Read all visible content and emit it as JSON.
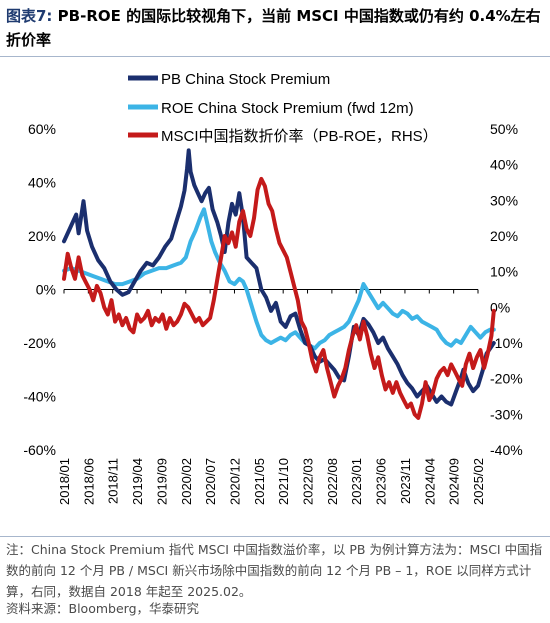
{
  "title": {
    "label": "图表7:",
    "text": "PB-ROE 的国际比较视角下，当前 MSCI 中国指数或仍有约 0.4%左右折价率"
  },
  "note": "注：China Stock Premium 指代 MSCI 中国指数溢价率，以 PB 为例计算方法为：MSCI 中国指数的前向 12 个月 PB / MSCI 新兴市场除中国指数的前向 12 个月 PB – 1，ROE 以同样方式计算，右同，数据自 2018 年起至 2025.02。",
  "source": "资料来源：Bloomberg，华泰研究",
  "chart_data": {
    "type": "line",
    "x_tick_labels": [
      "2018/01",
      "2018/06",
      "2018/11",
      "2019/04",
      "2019/09",
      "2020/02",
      "2020/07",
      "2020/12",
      "2021/05",
      "2021/10",
      "2022/03",
      "2022/08",
      "2023/01",
      "2023/06",
      "2023/11",
      "2024/04",
      "2024/09",
      "2025/02"
    ],
    "x_range": [
      "2018-01",
      "2025-02"
    ],
    "y_left": {
      "range": [
        -60,
        60
      ],
      "ticks": [
        "-60%",
        "-40%",
        "-20%",
        "0%",
        "20%",
        "40%",
        "60%"
      ]
    },
    "y_right": {
      "range": [
        -40,
        50
      ],
      "ticks": [
        "-40%",
        "-30%",
        "-20%",
        "-10%",
        "0%",
        "10%",
        "20%",
        "30%",
        "40%",
        "50%"
      ]
    },
    "legend": [
      "PB China Stock Premium",
      "ROE China Stock Premium (fwd 12m)",
      "MSCI中国指数折价率（PB-ROE，RHS）"
    ],
    "legend_position": "top-left",
    "grid": false,
    "colors": {
      "pb": "#1b2f6e",
      "roe": "#3cb4e6",
      "discount": "#c41a1a"
    },
    "series": [
      {
        "name": "PB China Stock Premium",
        "axis": "left",
        "points": [
          [
            0.0,
            18
          ],
          [
            0.25,
            23
          ],
          [
            0.5,
            28
          ],
          [
            0.6,
            21
          ],
          [
            0.8,
            33
          ],
          [
            0.95,
            22
          ],
          [
            1.15,
            16
          ],
          [
            1.4,
            11
          ],
          [
            1.65,
            8
          ],
          [
            1.9,
            3
          ],
          [
            2.15,
            0
          ],
          [
            2.4,
            -2
          ],
          [
            2.65,
            -1
          ],
          [
            2.9,
            3
          ],
          [
            3.15,
            7
          ],
          [
            3.4,
            10
          ],
          [
            3.65,
            9
          ],
          [
            3.9,
            12
          ],
          [
            4.15,
            16
          ],
          [
            4.4,
            19
          ],
          [
            4.6,
            25
          ],
          [
            4.8,
            31
          ],
          [
            4.95,
            37
          ],
          [
            5.05,
            45
          ],
          [
            5.12,
            52
          ],
          [
            5.2,
            44
          ],
          [
            5.35,
            39
          ],
          [
            5.5,
            36
          ],
          [
            5.65,
            33
          ],
          [
            5.8,
            36
          ],
          [
            5.95,
            38
          ],
          [
            6.1,
            30
          ],
          [
            6.3,
            25
          ],
          [
            6.45,
            20
          ],
          [
            6.6,
            14
          ],
          [
            6.75,
            25
          ],
          [
            6.9,
            32
          ],
          [
            7.05,
            28
          ],
          [
            7.2,
            36
          ],
          [
            7.35,
            27
          ],
          [
            7.5,
            12
          ],
          [
            7.7,
            10
          ],
          [
            7.9,
            8
          ],
          [
            8.1,
            0
          ],
          [
            8.3,
            -3
          ],
          [
            8.5,
            -8
          ],
          [
            8.7,
            -5
          ],
          [
            8.9,
            -12
          ],
          [
            9.1,
            -14
          ],
          [
            9.3,
            -10
          ],
          [
            9.5,
            -9
          ],
          [
            9.7,
            -15
          ],
          [
            9.9,
            -20
          ],
          [
            10.1,
            -21
          ],
          [
            10.3,
            -25
          ],
          [
            10.5,
            -27
          ],
          [
            10.7,
            -26
          ],
          [
            10.9,
            -28
          ],
          [
            11.1,
            -30
          ],
          [
            11.3,
            -33
          ],
          [
            11.5,
            -34
          ],
          [
            11.7,
            -25
          ],
          [
            11.9,
            -14
          ],
          [
            12.1,
            -17
          ],
          [
            12.3,
            -11
          ],
          [
            12.5,
            -13
          ],
          [
            12.7,
            -16
          ],
          [
            12.9,
            -20
          ],
          [
            13.1,
            -18
          ],
          [
            13.3,
            -22
          ],
          [
            13.5,
            -25
          ],
          [
            13.7,
            -28
          ],
          [
            13.9,
            -32
          ],
          [
            14.1,
            -35
          ],
          [
            14.3,
            -37
          ],
          [
            14.5,
            -40
          ],
          [
            14.7,
            -38
          ],
          [
            14.9,
            -36
          ],
          [
            15.1,
            -39
          ],
          [
            15.3,
            -42
          ],
          [
            15.5,
            -40
          ],
          [
            15.7,
            -42
          ],
          [
            15.9,
            -43
          ],
          [
            16.1,
            -38
          ],
          [
            16.3,
            -33
          ],
          [
            16.4,
            -30
          ],
          [
            16.6,
            -35
          ],
          [
            16.8,
            -38
          ],
          [
            17.0,
            -36
          ],
          [
            17.2,
            -30
          ],
          [
            17.35,
            -24
          ],
          [
            17.5,
            -22
          ],
          [
            17.65,
            -20
          ]
        ]
      },
      {
        "name": "ROE China Stock Premium (fwd 12m)",
        "axis": "left",
        "points": [
          [
            0.0,
            7
          ],
          [
            0.3,
            8
          ],
          [
            0.6,
            7
          ],
          [
            0.9,
            6
          ],
          [
            1.2,
            5
          ],
          [
            1.5,
            4
          ],
          [
            1.8,
            3
          ],
          [
            2.1,
            2
          ],
          [
            2.4,
            2
          ],
          [
            2.7,
            3
          ],
          [
            3.0,
            4
          ],
          [
            3.3,
            6
          ],
          [
            3.6,
            7
          ],
          [
            3.9,
            8
          ],
          [
            4.2,
            8
          ],
          [
            4.5,
            9
          ],
          [
            4.8,
            10
          ],
          [
            5.0,
            12
          ],
          [
            5.2,
            18
          ],
          [
            5.4,
            22
          ],
          [
            5.6,
            27
          ],
          [
            5.75,
            30
          ],
          [
            5.9,
            24
          ],
          [
            6.05,
            18
          ],
          [
            6.2,
            14
          ],
          [
            6.4,
            10
          ],
          [
            6.6,
            7
          ],
          [
            6.8,
            3
          ],
          [
            7.0,
            2
          ],
          [
            7.2,
            4
          ],
          [
            7.35,
            3
          ],
          [
            7.5,
            0
          ],
          [
            7.7,
            -6
          ],
          [
            7.9,
            -12
          ],
          [
            8.1,
            -17
          ],
          [
            8.3,
            -19
          ],
          [
            8.5,
            -20
          ],
          [
            8.7,
            -19
          ],
          [
            8.9,
            -18
          ],
          [
            9.1,
            -19
          ],
          [
            9.3,
            -17
          ],
          [
            9.5,
            -16
          ],
          [
            9.7,
            -18
          ],
          [
            9.9,
            -20
          ],
          [
            10.1,
            -21
          ],
          [
            10.3,
            -22
          ],
          [
            10.5,
            -20
          ],
          [
            10.7,
            -19
          ],
          [
            10.9,
            -17
          ],
          [
            11.1,
            -16
          ],
          [
            11.3,
            -15
          ],
          [
            11.5,
            -14
          ],
          [
            11.7,
            -12
          ],
          [
            11.9,
            -8
          ],
          [
            12.1,
            -4
          ],
          [
            12.3,
            2
          ],
          [
            12.5,
            -1
          ],
          [
            12.7,
            -4
          ],
          [
            12.9,
            -7
          ],
          [
            13.1,
            -5
          ],
          [
            13.3,
            -7
          ],
          [
            13.5,
            -9
          ],
          [
            13.7,
            -10
          ],
          [
            13.9,
            -8
          ],
          [
            14.1,
            -9
          ],
          [
            14.3,
            -11
          ],
          [
            14.5,
            -10
          ],
          [
            14.7,
            -12
          ],
          [
            14.9,
            -13
          ],
          [
            15.1,
            -14
          ],
          [
            15.3,
            -15
          ],
          [
            15.5,
            -18
          ],
          [
            15.7,
            -20
          ],
          [
            15.9,
            -21
          ],
          [
            16.1,
            -19
          ],
          [
            16.3,
            -20
          ],
          [
            16.5,
            -17
          ],
          [
            16.7,
            -14
          ],
          [
            16.9,
            -16
          ],
          [
            17.1,
            -18
          ],
          [
            17.3,
            -16
          ],
          [
            17.5,
            -15
          ],
          [
            17.65,
            -15
          ]
        ]
      },
      {
        "name": "MSCI中国指数折价率（PB-ROE，RHS）",
        "axis": "right",
        "points": [
          [
            0.0,
            8
          ],
          [
            0.15,
            15
          ],
          [
            0.3,
            11
          ],
          [
            0.45,
            8
          ],
          [
            0.6,
            14
          ],
          [
            0.75,
            9
          ],
          [
            0.9,
            7
          ],
          [
            1.05,
            5
          ],
          [
            1.2,
            2
          ],
          [
            1.35,
            6
          ],
          [
            1.5,
            4
          ],
          [
            1.65,
            0
          ],
          [
            1.8,
            -2
          ],
          [
            1.95,
            2
          ],
          [
            2.1,
            -4
          ],
          [
            2.25,
            -2
          ],
          [
            2.4,
            -5
          ],
          [
            2.55,
            -3
          ],
          [
            2.7,
            -6
          ],
          [
            2.85,
            -7
          ],
          [
            3.0,
            -2
          ],
          [
            3.15,
            -4
          ],
          [
            3.3,
            -3
          ],
          [
            3.45,
            -1
          ],
          [
            3.6,
            -5
          ],
          [
            3.75,
            -3
          ],
          [
            3.9,
            -4
          ],
          [
            4.05,
            -2
          ],
          [
            4.2,
            -6
          ],
          [
            4.35,
            -3
          ],
          [
            4.5,
            -5
          ],
          [
            4.65,
            -4
          ],
          [
            4.8,
            -2
          ],
          [
            4.95,
            1
          ],
          [
            5.1,
            0
          ],
          [
            5.25,
            -2
          ],
          [
            5.4,
            -4
          ],
          [
            5.55,
            -3
          ],
          [
            5.7,
            -5
          ],
          [
            5.85,
            -4
          ],
          [
            6.0,
            -3
          ],
          [
            6.15,
            2
          ],
          [
            6.3,
            8
          ],
          [
            6.45,
            14
          ],
          [
            6.6,
            20
          ],
          [
            6.75,
            18
          ],
          [
            6.9,
            21
          ],
          [
            7.05,
            17
          ],
          [
            7.2,
            24
          ],
          [
            7.35,
            27
          ],
          [
            7.5,
            22
          ],
          [
            7.65,
            20
          ],
          [
            7.8,
            25
          ],
          [
            7.95,
            33
          ],
          [
            8.1,
            36
          ],
          [
            8.25,
            34
          ],
          [
            8.4,
            29
          ],
          [
            8.55,
            27
          ],
          [
            8.7,
            22
          ],
          [
            8.85,
            18
          ],
          [
            9.0,
            16
          ],
          [
            9.15,
            14
          ],
          [
            9.3,
            10
          ],
          [
            9.45,
            6
          ],
          [
            9.6,
            2
          ],
          [
            9.75,
            -4
          ],
          [
            9.9,
            -6
          ],
          [
            10.05,
            -10
          ],
          [
            10.2,
            -15
          ],
          [
            10.35,
            -18
          ],
          [
            10.5,
            -14
          ],
          [
            10.65,
            -12
          ],
          [
            10.8,
            -17
          ],
          [
            10.95,
            -21
          ],
          [
            11.1,
            -25
          ],
          [
            11.25,
            -22
          ],
          [
            11.4,
            -20
          ],
          [
            11.55,
            -17
          ],
          [
            11.7,
            -12
          ],
          [
            11.85,
            -8
          ],
          [
            12.0,
            -5
          ],
          [
            12.15,
            -9
          ],
          [
            12.3,
            -4
          ],
          [
            12.45,
            -8
          ],
          [
            12.6,
            -13
          ],
          [
            12.75,
            -17
          ],
          [
            12.9,
            -14
          ],
          [
            13.05,
            -19
          ],
          [
            13.2,
            -23
          ],
          [
            13.35,
            -21
          ],
          [
            13.5,
            -24
          ],
          [
            13.65,
            -21
          ],
          [
            13.8,
            -24
          ],
          [
            13.95,
            -26
          ],
          [
            14.1,
            -28
          ],
          [
            14.25,
            -27
          ],
          [
            14.4,
            -30
          ],
          [
            14.55,
            -31
          ],
          [
            14.7,
            -27
          ],
          [
            14.85,
            -21
          ],
          [
            15.0,
            -26
          ],
          [
            15.15,
            -24
          ],
          [
            15.3,
            -20
          ],
          [
            15.45,
            -18
          ],
          [
            15.6,
            -17
          ],
          [
            15.75,
            -19
          ],
          [
            15.9,
            -16
          ],
          [
            16.05,
            -18
          ],
          [
            16.2,
            -20
          ],
          [
            16.35,
            -22
          ],
          [
            16.5,
            -16
          ],
          [
            16.65,
            -13
          ],
          [
            16.8,
            -17
          ],
          [
            16.95,
            -14
          ],
          [
            17.1,
            -12
          ],
          [
            17.25,
            -17
          ],
          [
            17.4,
            -13
          ],
          [
            17.55,
            -8
          ],
          [
            17.65,
            -1
          ]
        ]
      }
    ]
  }
}
